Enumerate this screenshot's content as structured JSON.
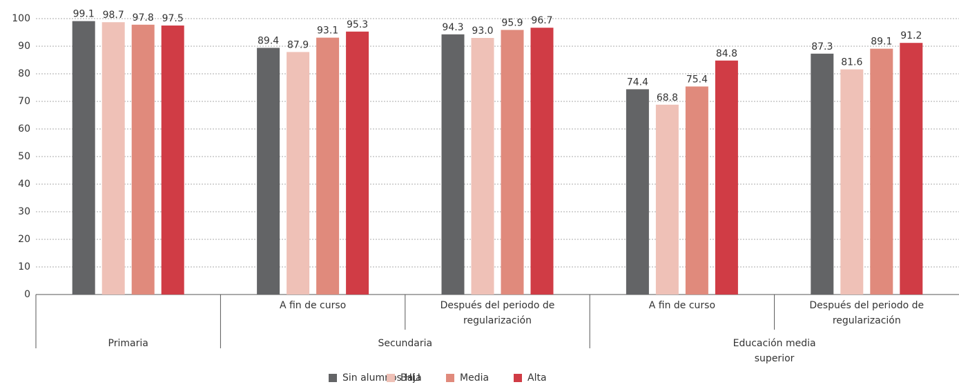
{
  "chart_data": {
    "type": "bar",
    "groups": [
      {
        "name": "Primaria",
        "categories": [
          null
        ]
      },
      {
        "name": "Secundaria",
        "categories": [
          "A fin de curso",
          "Después del periodo de regularización"
        ]
      },
      {
        "name": "Educación media superior",
        "categories": [
          "A fin de curso",
          "Después del periodo de regularización"
        ]
      }
    ],
    "series": [
      {
        "name": "Sin alumnos HLI",
        "color": "#636466",
        "values": [
          99.1,
          89.4,
          94.3,
          74.4,
          87.3
        ],
        "value_labels": [
          "99.1",
          "89.4",
          "94.3",
          "74.4",
          "87.3"
        ]
      },
      {
        "name": "Baja",
        "color": "#efc1b7",
        "values": [
          98.7,
          87.9,
          93.0,
          68.8,
          81.6
        ],
        "value_labels": [
          "98.7",
          "87.9",
          "93.0",
          "68.8",
          "81.6"
        ]
      },
      {
        "name": "Media",
        "color": "#e08a7c",
        "values": [
          97.8,
          93.1,
          95.9,
          75.4,
          89.1
        ],
        "value_labels": [
          "97.8",
          "93.1",
          "95.9",
          "75.4",
          "89.1"
        ]
      },
      {
        "name": "Alta",
        "color": "#d03c45",
        "values": [
          97.5,
          95.3,
          96.7,
          84.8,
          91.2
        ],
        "value_labels": [
          "97.5",
          "95.3",
          "96.7",
          "84.8",
          "91.2"
        ]
      }
    ],
    "ylim": [
      0,
      100
    ],
    "yticks": [
      0,
      10,
      20,
      30,
      40,
      50,
      60,
      70,
      80,
      90,
      100
    ],
    "grid": true,
    "legend": "bottom"
  }
}
